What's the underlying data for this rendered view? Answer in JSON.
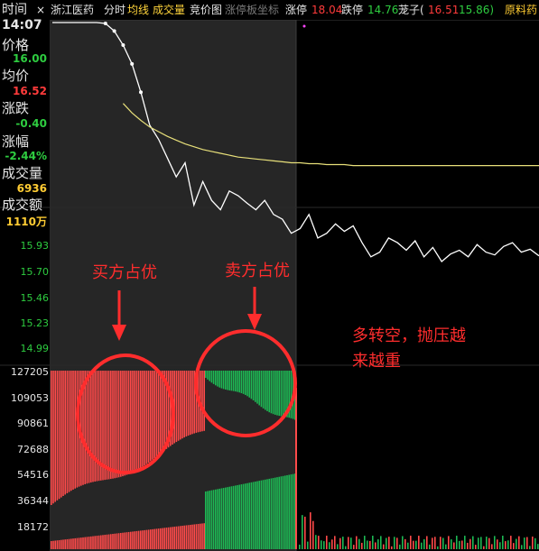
{
  "header": {
    "time_label": "时间",
    "close_glyph": "×",
    "stock_name": "浙江医药",
    "tabs": [
      "分时",
      "均线",
      "成交量",
      "竞价图",
      "涨停板坐标"
    ],
    "limit_up_label": "涨停",
    "limit_up_value": "18.04",
    "limit_down_label": "跌停",
    "limit_down_value": "14.76",
    "sub_label": "茏子(",
    "sub_v1": "16.51",
    "sub_v2": "15.86)",
    "sector": "原料药"
  },
  "sidebar": {
    "time": "14:07",
    "price_label": "价格",
    "price_value": "16.00",
    "avg_label": "均价",
    "avg_value": "16.52",
    "change_label": "涨跌",
    "change_value": "-0.40",
    "pct_label": "涨幅",
    "pct_value": "-2.44%",
    "volume_label": "成交量",
    "volume_value": "6936",
    "amount_label": "成交额",
    "amount_value": "1110万"
  },
  "axis": {
    "price_ticks": [
      "15.93",
      "15.70",
      "15.46",
      "15.23",
      "14.99"
    ],
    "volume_ticks": [
      "127205",
      "109053",
      "90861",
      "72688",
      "54516",
      "36344",
      "18172"
    ]
  },
  "annotations": {
    "buyer_label": "买方占优",
    "seller_label": "卖方占优",
    "note_line1": "多转空，抛压越",
    "note_line2": "来越重"
  },
  "colors": {
    "price_line": "#ffffff",
    "avg_line": "#e8e07a",
    "buy_vol": "#ff4a4a",
    "sell_vol": "#1db954",
    "annotation": "#ff2d2d"
  },
  "chart_data": {
    "type": "line",
    "price_axis": {
      "ticks": [
        15.93,
        15.7,
        15.46,
        15.23,
        14.99
      ]
    },
    "volume_axis": {
      "ticks": [
        127205,
        109053,
        90861,
        72688,
        54516,
        36344,
        18172
      ]
    },
    "price_series": [
      18.04,
      18.04,
      18.04,
      18.04,
      18.04,
      18.04,
      18.03,
      17.95,
      17.8,
      17.6,
      17.3,
      16.95,
      16.8,
      16.6,
      16.4,
      16.55,
      16.1,
      16.35,
      16.15,
      16.05,
      16.25,
      16.2,
      16.12,
      16.05,
      16.15,
      16.0,
      15.95,
      15.8,
      15.85,
      16.0,
      15.75,
      15.8,
      15.9,
      15.82,
      15.88,
      15.7,
      15.55,
      15.6,
      15.75,
      15.7,
      15.62,
      15.72,
      15.55,
      15.65,
      15.5,
      15.58,
      15.62,
      15.55,
      15.68,
      15.6,
      15.57,
      15.66,
      15.7,
      15.6,
      15.63,
      15.56
    ],
    "avg_series": [
      18.04,
      18.02,
      17.98,
      17.9,
      17.8,
      17.62,
      17.45,
      17.3,
      17.18,
      17.08,
      17.0,
      16.93,
      16.88,
      16.83,
      16.79,
      16.75,
      16.72,
      16.69,
      16.67,
      16.65,
      16.63,
      16.61,
      16.6,
      16.59,
      16.58,
      16.57,
      16.56,
      16.55,
      16.55,
      16.54,
      16.54,
      16.53,
      16.53,
      16.53,
      16.52,
      16.52,
      16.52,
      16.52,
      16.52,
      16.52,
      16.52,
      16.52,
      16.52,
      16.52,
      16.52,
      16.52,
      16.52,
      16.52,
      16.52,
      16.52,
      16.52,
      16.52,
      16.52,
      16.52,
      16.52,
      16.52
    ]
  }
}
